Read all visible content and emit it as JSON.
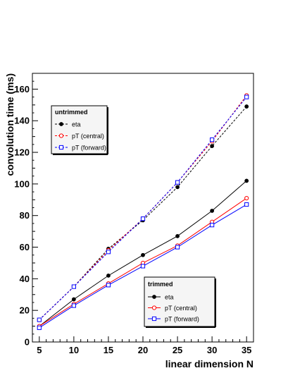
{
  "chart_data": {
    "type": "line",
    "xlabel": "linear dimension N",
    "ylabel": "convolution time (ms)",
    "xlim": [
      4,
      36
    ],
    "ylim": [
      0,
      170
    ],
    "x_ticks": [
      5,
      10,
      15,
      20,
      25,
      30,
      35
    ],
    "y_ticks": [
      0,
      20,
      40,
      60,
      80,
      100,
      120,
      140,
      160
    ],
    "x_tick_labels": [
      "5",
      "10",
      "15",
      "20",
      "25",
      "30",
      "35"
    ],
    "y_tick_labels": [
      "0",
      "20",
      "40",
      "60",
      "80",
      "100",
      "120",
      "140",
      "160"
    ],
    "grid": false,
    "x": [
      5,
      10,
      15,
      20,
      25,
      30,
      35
    ],
    "groups": [
      {
        "title": "untrimmed",
        "legend_position": "top-left",
        "series": [
          {
            "name": "eta",
            "color": "#000000",
            "marker": "filled-circle",
            "line": "dashed",
            "values": [
              14,
              35,
              59,
              77,
              98,
              124,
              149
            ]
          },
          {
            "name": "pT (central)",
            "color": "#ff0000",
            "marker": "open-circle",
            "line": "dashed",
            "values": [
              14,
              35,
              58,
              78,
              101,
              127,
              156
            ]
          },
          {
            "name": "pT (forward)",
            "color": "#0000ff",
            "marker": "open-square",
            "line": "dashed",
            "values": [
              14,
              35,
              57,
              78,
              101,
              128,
              155
            ]
          }
        ]
      },
      {
        "title": "trimmed",
        "legend_position": "bottom-right",
        "series": [
          {
            "name": "eta",
            "color": "#000000",
            "marker": "filled-circle",
            "line": "solid",
            "values": [
              10,
              27,
              42,
              55,
              67,
              83,
              102
            ]
          },
          {
            "name": "pT (central)",
            "color": "#ff0000",
            "marker": "open-circle",
            "line": "solid",
            "values": [
              10,
              24,
              37,
              50,
              61,
              76,
              91
            ]
          },
          {
            "name": "pT (forward)",
            "color": "#0000ff",
            "marker": "open-square",
            "line": "solid",
            "values": [
              9,
              23,
              36,
              48,
              60,
              74,
              87
            ]
          }
        ]
      }
    ]
  }
}
